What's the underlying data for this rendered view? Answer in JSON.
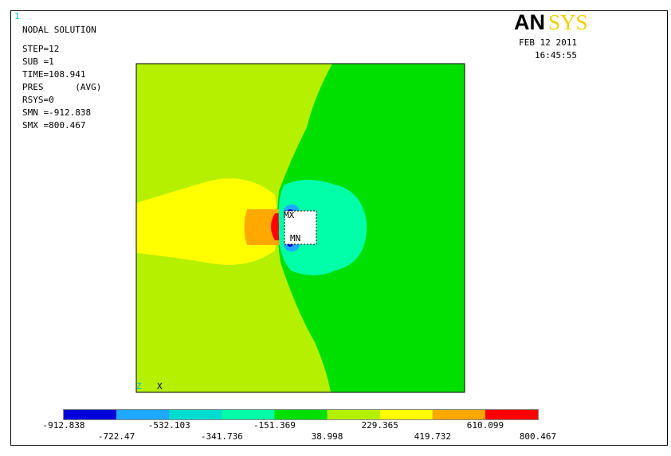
{
  "window_number": "1",
  "info": [
    "NODAL SOLUTION",
    "STEP=12",
    "SUB =1",
    "TIME=108.941",
    "PRES      (AVG)",
    "RSYS=0",
    "SMN =-912.838",
    "SMX =800.467"
  ],
  "logo": {
    "left": "AN",
    "right": "SYS"
  },
  "date": "FEB 12 2011",
  "time": "16:45:55",
  "plot_labels": {
    "max": "MX",
    "min": "MN",
    "axis_z": "Z",
    "axis_x": "X"
  },
  "legend": {
    "levels": [
      -912.838,
      -722.47,
      -532.103,
      -341.736,
      -151.369,
      38.998,
      229.365,
      419.732,
      610.099,
      800.467
    ],
    "colors": [
      "#0000d8",
      "#1ea8ff",
      "#00ddd0",
      "#00ffa8",
      "#00e000",
      "#b4f000",
      "#ffff00",
      "#ffa800",
      "#ff0000"
    ]
  }
}
